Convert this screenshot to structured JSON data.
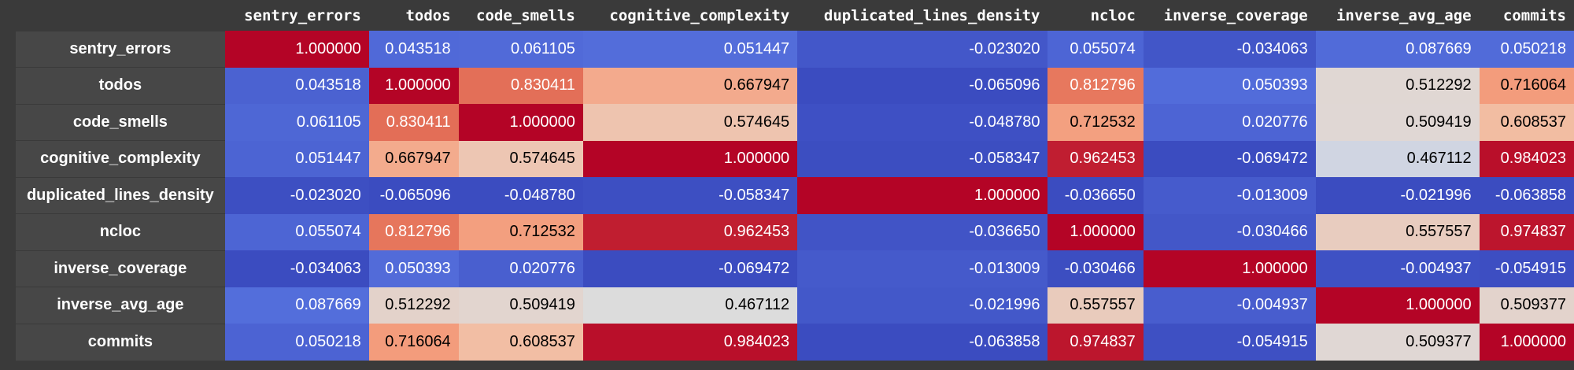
{
  "chart_data": {
    "type": "heatmap",
    "colormap": "coolwarm",
    "value_format": "%.6f",
    "columns": [
      "sentry_errors",
      "todos",
      "code_smells",
      "cognitive_complexity",
      "duplicated_lines_density",
      "ncloc",
      "inverse_coverage",
      "inverse_avg_age",
      "commits"
    ],
    "rows": [
      "sentry_errors",
      "todos",
      "code_smells",
      "cognitive_complexity",
      "duplicated_lines_density",
      "ncloc",
      "inverse_coverage",
      "inverse_avg_age",
      "commits"
    ],
    "values": [
      [
        1.0,
        0.043518,
        0.061105,
        0.051447,
        -0.02302,
        0.055074,
        -0.034063,
        0.087669,
        0.050218
      ],
      [
        0.043518,
        1.0,
        0.830411,
        0.667947,
        -0.065096,
        0.812796,
        0.050393,
        0.512292,
        0.716064
      ],
      [
        0.061105,
        0.830411,
        1.0,
        0.574645,
        -0.04878,
        0.712532,
        0.020776,
        0.509419,
        0.608537
      ],
      [
        0.051447,
        0.667947,
        0.574645,
        1.0,
        -0.058347,
        0.962453,
        -0.069472,
        0.467112,
        0.984023
      ],
      [
        -0.02302,
        -0.065096,
        -0.04878,
        -0.058347,
        1.0,
        -0.03665,
        -0.013009,
        -0.021996,
        -0.063858
      ],
      [
        0.055074,
        0.812796,
        0.712532,
        0.962453,
        -0.03665,
        1.0,
        -0.030466,
        0.557557,
        0.974837
      ],
      [
        -0.034063,
        0.050393,
        0.020776,
        -0.069472,
        -0.013009,
        -0.030466,
        1.0,
        -0.004937,
        -0.054915
      ],
      [
        0.087669,
        0.512292,
        0.509419,
        0.467112,
        -0.021996,
        0.557557,
        -0.004937,
        1.0,
        0.509377
      ],
      [
        0.050218,
        0.716064,
        0.608537,
        0.984023,
        -0.063858,
        0.974837,
        -0.054915,
        0.509377,
        1.0
      ]
    ],
    "column_minimums": [
      -0.034063,
      -0.065096,
      -0.04878,
      -0.069472,
      -0.065096,
      -0.03665,
      -0.069472,
      -0.021996,
      -0.063858
    ]
  }
}
